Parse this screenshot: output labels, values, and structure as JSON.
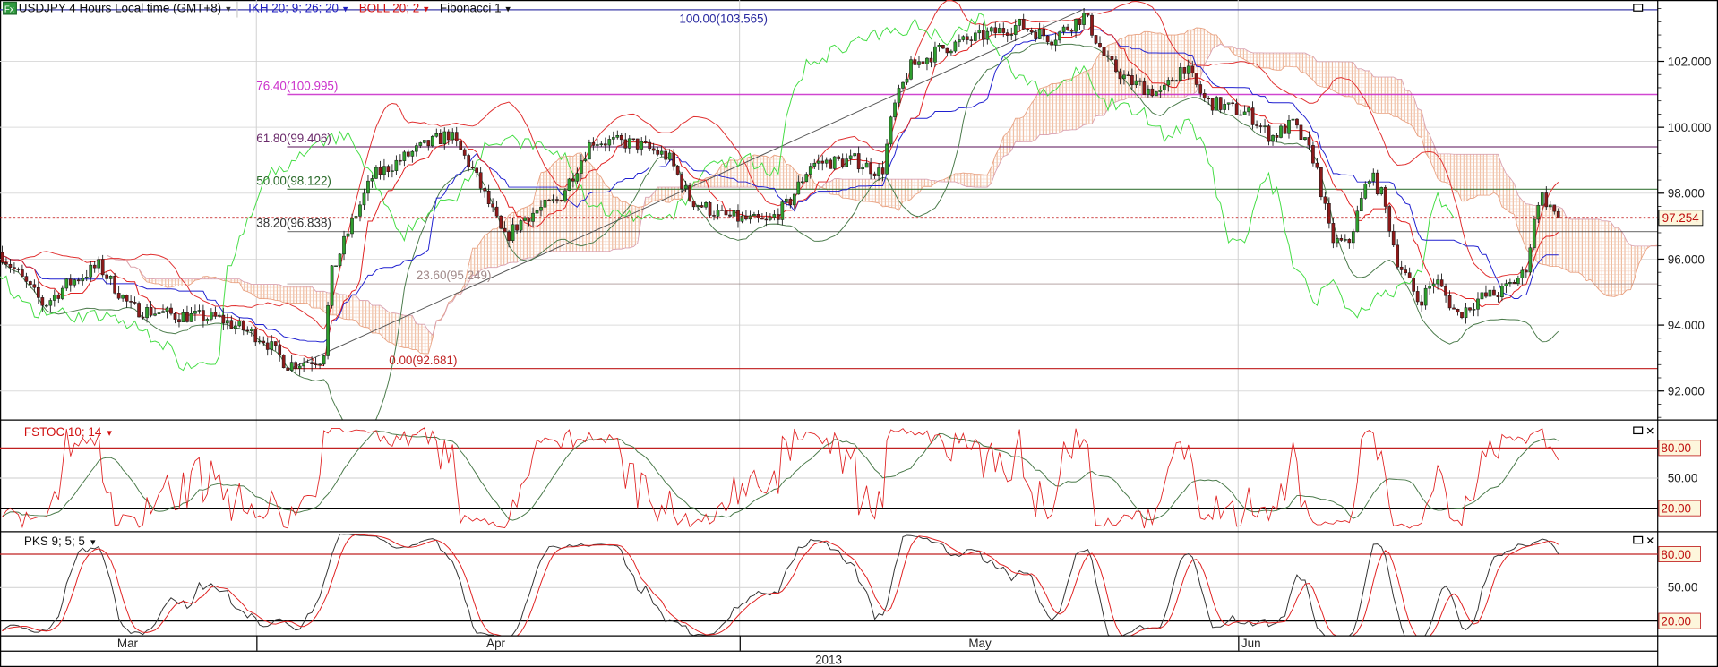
{
  "header": {
    "fx_badge": "Fx",
    "symbol_title": "USDJPY 4 Hours Local time (GMT+8)",
    "ichimoku_label": "IKH 20; 9; 26; 20",
    "bollinger_label": "BOLL 20; 2",
    "fibonacci_label": "Fibonacci 1",
    "dropdown_glyph": "▾"
  },
  "price_axis": {
    "ticks": [
      "102.000",
      "100.000",
      "98.000",
      "96.000",
      "94.000",
      "92.000"
    ],
    "current_price": "97.254"
  },
  "fibonacci": {
    "levels": [
      {
        "label": "100.00(103.565)",
        "color": "#2a2aa0"
      },
      {
        "label": "76.40(100.995)",
        "color": "#cc33cc"
      },
      {
        "label": "61.80(99.406)",
        "color": "#6a2a6a"
      },
      {
        "label": "50.00(98.122)",
        "color": "#2a6a2a"
      },
      {
        "label": "38.20(96.838)",
        "color": "#333333"
      },
      {
        "label": "23.60(95.249)",
        "color": "#a08888"
      },
      {
        "label": "0.00(92.681)",
        "color": "#c02020"
      }
    ]
  },
  "stoch_pane": {
    "label": "FSTOC 10; 14",
    "levels": [
      "80.00",
      "50.00",
      "20.00"
    ]
  },
  "pks_pane": {
    "label": "PKS 9; 5; 5",
    "levels": [
      "80.00",
      "50.00",
      "20.00"
    ]
  },
  "time_axis": {
    "months": [
      "Mar",
      "Apr",
      "May",
      "Jun"
    ],
    "year": "2013"
  },
  "pane_controls": {
    "maximize_glyph": "□",
    "close_glyph": "✕"
  },
  "chart_data": {
    "type": "candlestick",
    "symbol": "USDJPY",
    "timeframe": "4 Hours",
    "ylim": [
      91.0,
      103.8
    ],
    "y_ticks": [
      92,
      94,
      96,
      98,
      100,
      102
    ],
    "current_price": 97.254,
    "fibonacci_levels": [
      {
        "pct": 100.0,
        "price": 103.565
      },
      {
        "pct": 76.4,
        "price": 100.995
      },
      {
        "pct": 61.8,
        "price": 99.406
      },
      {
        "pct": 50.0,
        "price": 98.122
      },
      {
        "pct": 38.2,
        "price": 96.838
      },
      {
        "pct": 23.6,
        "price": 95.249
      },
      {
        "pct": 0.0,
        "price": 92.681
      }
    ],
    "indicators": {
      "ichimoku": [
        20,
        9,
        26,
        20
      ],
      "bollinger": [
        20,
        2
      ],
      "fstoc": [
        10,
        14
      ],
      "pks": [
        9,
        5,
        5
      ]
    },
    "oscillator_levels": [
      20,
      50,
      80
    ],
    "colors": {
      "bull": "#2e9e2e",
      "bear": "#8b1a1a",
      "bollinger": "#e03030",
      "kijun": "#2020d0",
      "chikou": "#44dd44"
    }
  }
}
